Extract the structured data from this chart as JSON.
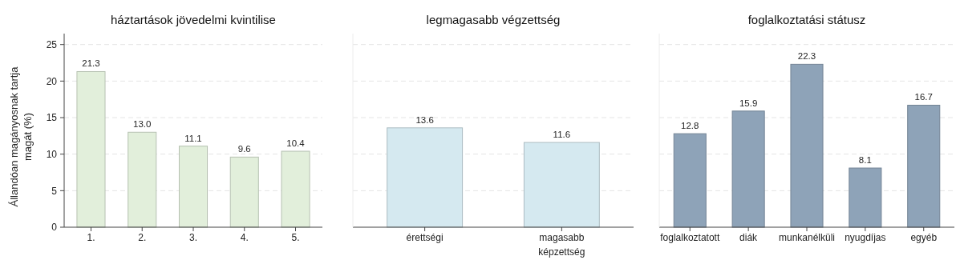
{
  "chart_data": [
    {
      "type": "bar",
      "title": "háztartások jövedelmi kvintilise",
      "ylabel": "Állandóan magányosnak tartja magát (%)",
      "categories": [
        "1.",
        "2.",
        "3.",
        "4.",
        "5."
      ],
      "values": [
        21.3,
        13.0,
        11.1,
        9.6,
        10.4
      ],
      "value_labels": [
        "21.3",
        "13.0",
        "11.1",
        "9.6",
        "10.4"
      ],
      "color": "#e2efdb",
      "ylim": [
        0,
        26.5
      ],
      "yticks": [
        0,
        5,
        10,
        15,
        20,
        25
      ],
      "grid": "y"
    },
    {
      "type": "bar",
      "title": "legmagasabb végzettség",
      "categories": [
        "érettségi",
        "magasabb képzettség"
      ],
      "values": [
        13.6,
        11.6
      ],
      "value_labels": [
        "13.6",
        "11.6"
      ],
      "color": "#d5e9f0",
      "ylim": [
        0,
        26.5
      ],
      "yticks": [
        0,
        5,
        10,
        15,
        20,
        25
      ],
      "grid": "y",
      "tick_labels": "x"
    },
    {
      "type": "bar",
      "title": "foglalkoztatási státusz",
      "categories": [
        "foglalkoztatott",
        "diák",
        "munkanélküli",
        "nyugdíjas",
        "egyéb"
      ],
      "values": [
        12.8,
        15.9,
        22.3,
        8.1,
        16.7
      ],
      "value_labels": [
        "12.8",
        "15.9",
        "22.3",
        "8.1",
        "16.7"
      ],
      "color": "#8ea3b8",
      "ylim": [
        0,
        26.5
      ],
      "yticks": [
        0,
        5,
        10,
        15,
        20,
        25
      ],
      "grid": "y",
      "tick_labels": "x"
    }
  ]
}
